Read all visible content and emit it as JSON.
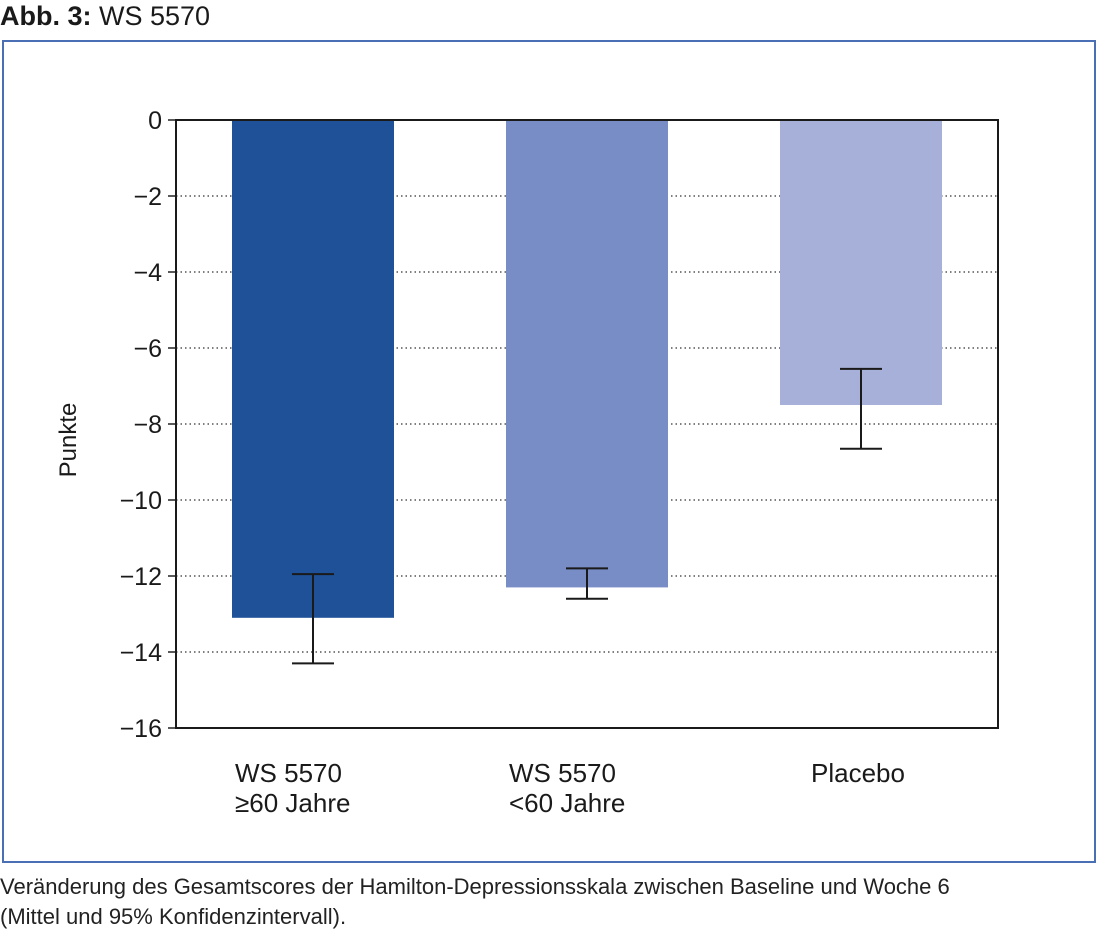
{
  "figure": {
    "label": "Abb. 3:",
    "title": "WS 5570",
    "caption_line1": "Veränderung des Gesamtscores der Hamilton-Depressionsskala zwischen Baseline und Woche 6",
    "caption_line2": "(Mittel und 95% Konfidenzintervall).",
    "frame_color": "#4a6fb5"
  },
  "chart_data": {
    "type": "bar",
    "ylabel": "Punkte",
    "xlabel": "",
    "ylim": [
      -16,
      0
    ],
    "yticks": [
      0,
      -2,
      -4,
      -6,
      -8,
      -10,
      -12,
      -14,
      -16
    ],
    "ytick_labels": [
      "0",
      "−2",
      "−4",
      "−6",
      "−8",
      "−10",
      "−12",
      "−14",
      "−16"
    ],
    "grid": "horizontal dotted",
    "categories": [
      {
        "lines": [
          "WS 5570",
          "≥60 Jahre"
        ]
      },
      {
        "lines": [
          "WS 5570",
          "<60 Jahre"
        ]
      },
      {
        "lines": [
          "Placebo"
        ]
      }
    ],
    "values": [
      -13.1,
      -12.3,
      -7.5
    ],
    "ci_upper": [
      -11.95,
      -11.8,
      -6.55
    ],
    "ci_lower": [
      -14.3,
      -12.6,
      -8.65
    ],
    "colors": [
      "#1f5199",
      "#788cc6",
      "#a6b0d9"
    ]
  }
}
